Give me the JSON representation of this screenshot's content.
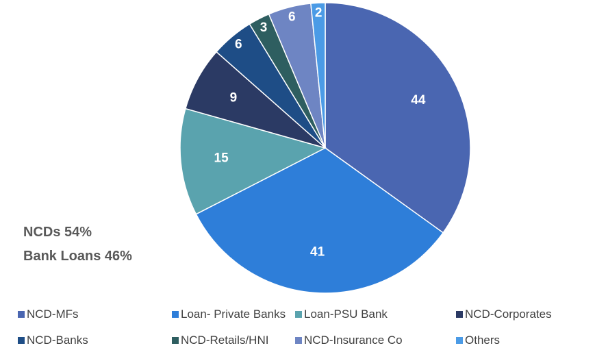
{
  "chart_data": {
    "type": "pie",
    "title": "",
    "slices": [
      {
        "label": "NCD-MFs",
        "value": 44,
        "color": "#4A66B1"
      },
      {
        "label": "Loan- Private Banks",
        "value": 41,
        "color": "#2E7ED9"
      },
      {
        "label": "Loan-PSU Bank",
        "value": 15,
        "color": "#5AA3AE"
      },
      {
        "label": "NCD-Corporates",
        "value": 9,
        "color": "#2B3A64"
      },
      {
        "label": "NCD-Banks",
        "value": 6,
        "color": "#1E4D86"
      },
      {
        "label": "NCD-Retails/HNI",
        "value": 3,
        "color": "#2E5E60"
      },
      {
        "label": "NCD-Insurance Co",
        "value": 6,
        "color": "#6E85C3"
      },
      {
        "label": "Others",
        "value": 2,
        "color": "#4B9BE6"
      }
    ],
    "legend_position": "bottom",
    "annotations": [
      "NCDs 54%",
      "Bank Loans 46%"
    ]
  }
}
